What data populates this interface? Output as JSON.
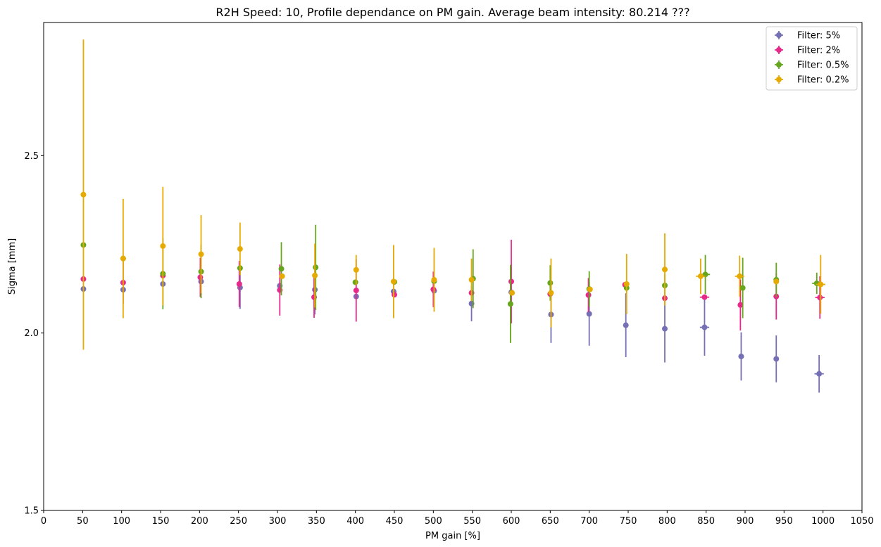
{
  "chart_data": {
    "type": "scatter",
    "title": "R2H Speed: 10, Profile dependance on PM gain. Average beam intensity: 80.214 ???",
    "xlabel": "PM gain [%]",
    "ylabel": "Sigma [mm]",
    "xlim": [
      0,
      1050
    ],
    "ylim": [
      1.5,
      2.875
    ],
    "xticks": [
      0,
      50,
      100,
      150,
      200,
      250,
      300,
      350,
      400,
      450,
      500,
      550,
      600,
      650,
      700,
      750,
      800,
      850,
      900,
      950,
      1000,
      1050
    ],
    "yticks": [
      1.5,
      2.0,
      2.5
    ],
    "ytick_labels": [
      "1.5",
      "2.0",
      "2.5"
    ],
    "grid": false,
    "legend_position": "top-right",
    "error_bars": true,
    "series": [
      {
        "name": "Filter: 5%",
        "color": "#7570b3",
        "x": [
          51,
          102,
          153,
          202,
          252,
          303,
          348,
          401,
          449,
          501,
          549,
          600,
          651,
          700,
          747,
          797,
          848,
          895,
          940,
          995
        ],
        "y": [
          2.124,
          2.122,
          2.138,
          2.145,
          2.128,
          2.133,
          2.122,
          2.103,
          2.117,
          2.119,
          2.083,
          2.115,
          2.052,
          2.054,
          2.022,
          2.012,
          2.016,
          1.934,
          1.927,
          1.885
        ],
        "yerr": [
          0.0,
          0.0,
          0.0,
          0.0,
          0.06,
          0.0,
          0.07,
          0.0,
          0.0,
          0.0,
          0.05,
          0.0,
          0.08,
          0.09,
          0.09,
          0.095,
          0.08,
          0.068,
          0.066,
          0.053
        ],
        "xerr": [
          0,
          0,
          0,
          0,
          0,
          0,
          0,
          0,
          0,
          0,
          0,
          0,
          0,
          0,
          0,
          0,
          6,
          0,
          0,
          6
        ]
      },
      {
        "name": "Filter: 2%",
        "color": "#e7298a",
        "x": [
          51,
          102,
          153,
          201,
          251,
          303,
          347,
          401,
          450,
          500,
          549,
          600,
          650,
          699,
          746,
          797,
          848,
          894,
          940,
          996
        ],
        "y": [
          2.152,
          2.142,
          2.162,
          2.157,
          2.138,
          2.121,
          2.101,
          2.12,
          2.108,
          2.123,
          2.113,
          2.145,
          2.11,
          2.107,
          2.136,
          2.098,
          2.101,
          2.079,
          2.103,
          2.1
        ],
        "yerr": [
          0.0,
          0.06,
          0.0,
          0.055,
          0.065,
          0.072,
          0.058,
          0.088,
          0.0,
          0.05,
          0.0,
          0.118,
          0.0,
          0.048,
          0.0,
          0.0,
          0.0,
          0.072,
          0.065,
          0.06
        ],
        "xerr": [
          0,
          0,
          0,
          0,
          0,
          0,
          0,
          0,
          0,
          0,
          0,
          0,
          0,
          0,
          0,
          0,
          6,
          0,
          0,
          6
        ]
      },
      {
        "name": "Filter: 0.5%",
        "color": "#66a61e",
        "x": [
          51,
          102,
          153,
          202,
          252,
          305,
          349,
          400,
          450,
          501,
          551,
          599,
          650,
          700,
          748,
          797,
          849,
          897,
          940,
          992
        ],
        "y": [
          2.248,
          2.21,
          2.167,
          2.173,
          2.183,
          2.181,
          2.185,
          2.143,
          2.144,
          2.146,
          2.153,
          2.082,
          2.141,
          2.124,
          2.127,
          2.134,
          2.165,
          2.127,
          2.15,
          2.14
        ],
        "yerr": [
          0.0,
          0.0,
          0.1,
          0.075,
          0.0,
          0.075,
          0.12,
          0.0,
          0.0,
          0.0,
          0.083,
          0.11,
          0.05,
          0.05,
          0.0,
          0.032,
          0.055,
          0.085,
          0.048,
          0.03
        ],
        "xerr": [
          0,
          0,
          0,
          0,
          0,
          0,
          0,
          0,
          0,
          0,
          0,
          0,
          0,
          0,
          0,
          0,
          6,
          0,
          0,
          6
        ]
      },
      {
        "name": "Filter: 0.2%",
        "color": "#e6ab02",
        "x": [
          51,
          102,
          153,
          202,
          252,
          306,
          348,
          401,
          449,
          501,
          549,
          601,
          651,
          701,
          748,
          797,
          843,
          893,
          940,
          997
        ],
        "y": [
          2.39,
          2.21,
          2.245,
          2.222,
          2.237,
          2.16,
          2.162,
          2.178,
          2.145,
          2.15,
          2.15,
          2.113,
          2.113,
          2.123,
          2.138,
          2.179,
          2.16,
          2.16,
          2.145,
          2.137
        ],
        "yerr": [
          0.437,
          0.168,
          0.167,
          0.11,
          0.074,
          0.0,
          0.09,
          0.042,
          0.103,
          0.09,
          0.06,
          0.0,
          0.097,
          0.0,
          0.085,
          0.102,
          0.05,
          0.058,
          0.0,
          0.083
        ],
        "xerr": [
          0,
          0,
          0,
          0,
          0,
          0,
          0,
          0,
          0,
          0,
          0,
          0,
          0,
          0,
          0,
          0,
          6,
          6,
          0,
          6
        ]
      }
    ]
  }
}
